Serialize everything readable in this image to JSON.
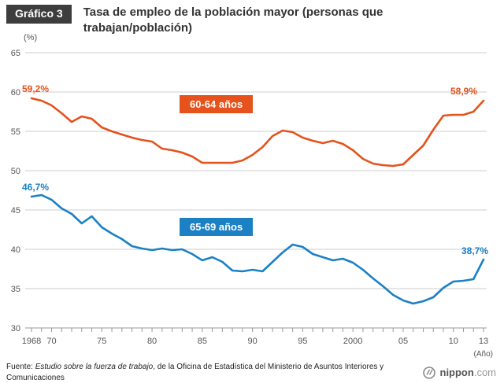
{
  "header": {
    "badge": "Gráfico 3",
    "title": "Tasa de empleo de la población mayor (personas que trabajan/población)"
  },
  "chart_data": {
    "type": "line",
    "title": "Tasa de empleo de la población mayor (personas que trabajan/población)",
    "ylabel": "(%)",
    "xlabel": "(Año)",
    "ylim": [
      30,
      65
    ],
    "yticks": [
      30,
      35,
      40,
      45,
      50,
      55,
      60,
      65
    ],
    "grid": true,
    "legend_position": "inline-boxes",
    "x": [
      1968,
      1969,
      1970,
      1971,
      1972,
      1973,
      1974,
      1975,
      1976,
      1977,
      1978,
      1979,
      1980,
      1981,
      1982,
      1983,
      1984,
      1985,
      1986,
      1987,
      1988,
      1989,
      1990,
      1991,
      1992,
      1993,
      1994,
      1995,
      1996,
      1997,
      1998,
      1999,
      2000,
      2001,
      2002,
      2003,
      2004,
      2005,
      2006,
      2007,
      2008,
      2009,
      2010,
      2011,
      2012,
      2013
    ],
    "xtick_labels": [
      {
        "year": 1968,
        "label": "1968"
      },
      {
        "year": 1970,
        "label": "70"
      },
      {
        "year": 1975,
        "label": "75"
      },
      {
        "year": 1980,
        "label": "80"
      },
      {
        "year": 1985,
        "label": "85"
      },
      {
        "year": 1990,
        "label": "90"
      },
      {
        "year": 1995,
        "label": "95"
      },
      {
        "year": 2000,
        "label": "2000"
      },
      {
        "year": 2005,
        "label": "05"
      },
      {
        "year": 2010,
        "label": "10"
      },
      {
        "year": 2013,
        "label": "13"
      }
    ],
    "series": [
      {
        "name": "60-64 años",
        "color": "#e5521c",
        "start_label": "59,2%",
        "end_label": "58,9%",
        "values": [
          59.2,
          58.9,
          58.3,
          57.3,
          56.2,
          56.9,
          56.6,
          55.5,
          55.0,
          54.6,
          54.2,
          53.9,
          53.7,
          52.8,
          52.6,
          52.3,
          51.8,
          51.0,
          51.0,
          51.0,
          51.0,
          51.3,
          52.0,
          53.0,
          54.4,
          55.1,
          54.9,
          54.2,
          53.8,
          53.5,
          53.8,
          53.4,
          52.6,
          51.5,
          50.9,
          50.7,
          50.6,
          50.8,
          52.0,
          53.2,
          55.2,
          57.0,
          57.1,
          57.1,
          57.5,
          58.9
        ]
      },
      {
        "name": "65-69 años",
        "color": "#1b80c4",
        "start_label": "46,7%",
        "end_label": "38,7%",
        "values": [
          46.7,
          46.9,
          46.3,
          45.2,
          44.5,
          43.3,
          44.2,
          42.8,
          42.0,
          41.3,
          40.4,
          40.1,
          39.9,
          40.1,
          39.9,
          40.0,
          39.4,
          38.6,
          39.0,
          38.4,
          37.3,
          37.2,
          37.4,
          37.2,
          38.4,
          39.6,
          40.6,
          40.3,
          39.4,
          39.0,
          38.6,
          38.8,
          38.3,
          37.4,
          36.3,
          35.3,
          34.2,
          33.5,
          33.1,
          33.4,
          33.9,
          35.1,
          35.9,
          36.0,
          36.2,
          38.7
        ]
      }
    ]
  },
  "labels": {
    "y_unit": "(%)",
    "x_unit": "(Año)",
    "series1_box": "60-64 años",
    "series2_box": "65-69 años",
    "start1": "59,2%",
    "end1": "58,9%",
    "start2": "46,7%",
    "end2": "38,7%"
  },
  "footer": {
    "source_prefix": "Fuente: ",
    "source_italic": "Estudio sobre la fuerza de trabajo",
    "source_rest": ", de la Oficina de Estadística del Ministerio de Asuntos Interiores y Comunicaciones",
    "logo_name": "nippon",
    "logo_tld": ".com"
  }
}
